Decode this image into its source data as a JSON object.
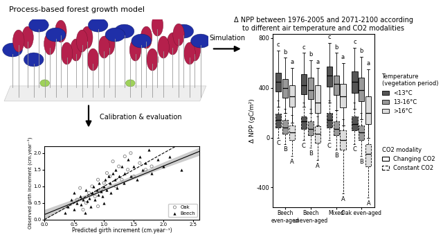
{
  "labels": {
    "model": "Process-based forest growth model",
    "simulation": "Simulation",
    "calibration": "Calibration & evaluation"
  },
  "chart_data": [
    {
      "type": "scatter",
      "xlabel": "Predicted girth increment (cm.year⁻¹)",
      "ylabel": "Observed girth increment (cm.year⁻¹)",
      "xlim": [
        0.0,
        2.6
      ],
      "ylim": [
        0.0,
        2.2
      ],
      "xticks": [
        0.0,
        0.5,
        1.0,
        1.5,
        2.0,
        2.5
      ],
      "yticks": [
        0.0,
        0.5,
        1.0,
        1.5,
        2.0
      ],
      "legend": "lower right",
      "series": [
        {
          "name": "Oak",
          "marker": "open_circle",
          "color": "#808080",
          "x": [
            0.55,
            0.6,
            0.7,
            0.75,
            0.8,
            0.85,
            0.9,
            0.95,
            1.0,
            1.05,
            1.1,
            1.15,
            1.2,
            1.25,
            1.3,
            1.35,
            1.4,
            1.5,
            1.6,
            1.7,
            0.65,
            0.9,
            1.45,
            1.8
          ],
          "y": [
            0.6,
            0.95,
            0.5,
            0.8,
            1.0,
            0.7,
            1.2,
            0.9,
            1.1,
            1.4,
            1.3,
            1.75,
            1.0,
            1.6,
            1.2,
            1.9,
            1.5,
            1.3,
            1.7,
            1.5,
            0.3,
            0.4,
            2.0,
            1.6
          ]
        },
        {
          "name": "Beech",
          "marker": "triangle",
          "color": "#000000",
          "x": [
            0.4,
            0.45,
            0.5,
            0.55,
            0.6,
            0.62,
            0.65,
            0.7,
            0.72,
            0.75,
            0.78,
            0.8,
            0.82,
            0.85,
            0.88,
            0.9,
            0.92,
            0.95,
            0.98,
            1.0,
            1.02,
            1.05,
            1.08,
            1.1,
            1.12,
            1.15,
            1.18,
            1.2,
            1.22,
            1.25,
            1.3,
            1.33,
            1.35,
            1.4,
            1.45,
            1.5,
            1.55,
            1.6,
            1.65,
            1.7,
            1.8,
            1.9,
            2.0,
            2.1,
            2.3,
            0.35,
            0.5,
            0.68,
            1.0,
            1.75
          ],
          "y": [
            0.4,
            0.6,
            0.3,
            0.5,
            0.7,
            0.45,
            0.6,
            0.9,
            0.55,
            0.65,
            0.4,
            0.8,
            1.0,
            0.6,
            0.9,
            0.75,
            1.1,
            0.85,
            0.7,
            1.0,
            1.2,
            0.9,
            1.3,
            1.1,
            0.8,
            1.4,
            1.2,
            1.5,
            0.95,
            1.3,
            1.6,
            1.1,
            1.4,
            1.8,
            1.3,
            1.6,
            1.2,
            1.9,
            1.5,
            1.7,
            1.4,
            1.8,
            1.6,
            1.9,
            1.5,
            0.2,
            0.8,
            0.2,
            0.5,
            2.1
          ]
        }
      ],
      "regression": {
        "x": [
          0.0,
          2.6
        ],
        "y": [
          0.15,
          2.05
        ],
        "line_style": "solid"
      },
      "identity": {
        "x": [
          0.0,
          2.6
        ],
        "y": [
          0.0,
          2.6
        ],
        "line_style": "dashed"
      },
      "band": {
        "x": [
          0.0,
          0.5,
          1.0,
          1.5,
          2.0,
          2.6
        ],
        "low": [
          0.0,
          0.48,
          0.87,
          1.22,
          1.55,
          1.93
        ],
        "high": [
          0.3,
          0.62,
          0.97,
          1.34,
          1.73,
          2.17
        ]
      }
    },
    {
      "type": "box",
      "title": "Δ NPP between 1976-2005 and 2071-2100 according\nto different air temperature and CO2 modalities",
      "ylabel": "Δ NPP (gC/m²)",
      "categories": [
        "Beech\neven-aged",
        "Beech\nuneven-aged",
        "Mixed",
        "Oak even-aged"
      ],
      "ylim": [
        -560,
        830
      ],
      "yticks": [
        -400,
        0,
        400,
        800
      ],
      "legend": "right",
      "temperature_legend": {
        "title": "Temperature\n(vegetation period)",
        "entries": [
          {
            "name": "<13°C",
            "color": "#555555"
          },
          {
            "name": "13-16°C",
            "color": "#999999"
          },
          {
            "name": ">16°C",
            "color": "#dddddd"
          }
        ]
      },
      "co2_legend": {
        "title": "CO2 modality",
        "entries": [
          {
            "name": "Changing CO2",
            "line_style": "solid"
          },
          {
            "name": "Constant CO2",
            "line_style": "dashed"
          }
        ]
      },
      "series": [
        {
          "temperature": "<13°C",
          "co2": "Constant CO2",
          "stats": [
            [
              0,
              80,
              140,
              190,
              300
            ],
            [
              -20,
              70,
              130,
              170,
              280
            ],
            [
              -20,
              80,
              140,
              200,
              300
            ],
            [
              -50,
              60,
              110,
              170,
              280
            ]
          ],
          "letters": [
            "C",
            "C",
            "C",
            "C"
          ]
        },
        {
          "temperature": "13-16°C",
          "co2": "Constant CO2",
          "stats": [
            [
              -50,
              30,
              80,
              140,
              230
            ],
            [
              -80,
              20,
              70,
              130,
              230
            ],
            [
              -100,
              20,
              70,
              130,
              220
            ],
            [
              -150,
              -20,
              40,
              100,
              200
            ]
          ],
          "letters": [
            "B",
            "B",
            "B",
            "B"
          ]
        },
        {
          "temperature": ">16°C",
          "co2": "Constant CO2",
          "stats": [
            [
              -150,
              -20,
              40,
              100,
              180
            ],
            [
              -180,
              -40,
              30,
              90,
              170
            ],
            [
              -450,
              -100,
              -20,
              60,
              150
            ],
            [
              -480,
              -230,
              -130,
              -50,
              120
            ]
          ],
          "letters": [
            "A",
            "A",
            "A",
            "A"
          ]
        },
        {
          "temperature": "<13°C",
          "co2": "Changing CO2",
          "stats": [
            [
              250,
              370,
              450,
              520,
              700
            ],
            [
              250,
              350,
              420,
              510,
              680
            ],
            [
              280,
              410,
              500,
              570,
              760
            ],
            [
              230,
              360,
              450,
              530,
              720
            ]
          ],
          "letters": [
            "c",
            "c",
            "c",
            "c"
          ]
        },
        {
          "temperature": "13-16°C",
          "co2": "Changing CO2",
          "stats": [
            [
              200,
              320,
              400,
              470,
              640
            ],
            [
              200,
              310,
              380,
              480,
              620
            ],
            [
              220,
              340,
              430,
              500,
              680
            ],
            [
              150,
              290,
              380,
              480,
              650
            ]
          ],
          "letters": [
            "b",
            "b",
            "b",
            "b"
          ]
        },
        {
          "temperature": ">16°C",
          "co2": "Changing CO2",
          "stats": [
            [
              120,
              250,
              330,
              420,
              560
            ],
            [
              100,
              200,
              280,
              420,
              560
            ],
            [
              100,
              240,
              330,
              430,
              600
            ],
            [
              0,
              110,
              200,
              330,
              550
            ]
          ],
          "letters": [
            "a",
            "a",
            "a",
            "a"
          ]
        }
      ]
    }
  ]
}
